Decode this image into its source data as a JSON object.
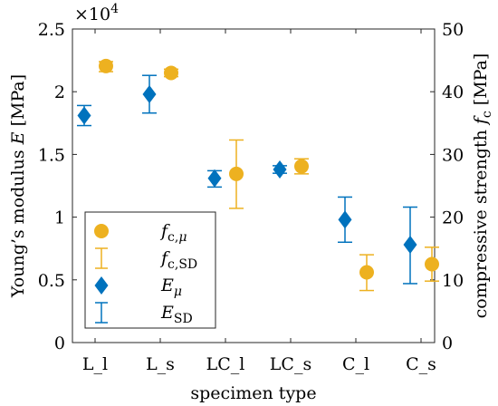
{
  "chart_data": {
    "type": "scatter",
    "categories": [
      "L_l",
      "L_s",
      "LC_l",
      "LC_s",
      "C_l",
      "C_s"
    ],
    "xlabel": "specimen type",
    "ylabel_left": "Young's modulus E [MPa]",
    "ylabel_right": "compressive strength f_c [MPa]",
    "left_exponent": "×10^4",
    "ylim_left": [
      0,
      25000
    ],
    "ylim_right": [
      0,
      50
    ],
    "left_ticks": [
      0,
      0.5,
      1,
      1.5,
      2,
      2.5
    ],
    "right_ticks": [
      0,
      10,
      20,
      30,
      40,
      50
    ],
    "grid": false,
    "legend_position": "bottom-left",
    "colors": {
      "E": "#0072BD",
      "fc": "#EDB120"
    },
    "series": [
      {
        "name": "f_c,μ",
        "axis": "right",
        "marker": "circle",
        "values": [
          44.1,
          43.0,
          26.9,
          28.1,
          11.2,
          12.5
        ],
        "error_lo": [
          43.2,
          42.4,
          21.4,
          26.9,
          8.3,
          9.8
        ],
        "error_hi": [
          44.8,
          43.6,
          32.3,
          29.3,
          14.0,
          15.2
        ]
      },
      {
        "name": "E_μ",
        "axis": "left",
        "marker": "diamond",
        "values": [
          18100,
          19800,
          13100,
          13800,
          9800,
          7800
        ],
        "error_lo": [
          17300,
          18300,
          12400,
          13500,
          8000,
          4700
        ],
        "error_hi": [
          18900,
          21300,
          13700,
          14100,
          11600,
          10800
        ]
      }
    ],
    "legend": [
      {
        "symbol": "circle",
        "color": "fc",
        "label": "f_c,μ"
      },
      {
        "symbol": "errorbar",
        "color": "fc",
        "label": "f_c,SD"
      },
      {
        "symbol": "diamond",
        "color": "E",
        "label": "E_μ"
      },
      {
        "symbol": "errorbar",
        "color": "E",
        "label": "E_SD"
      }
    ]
  }
}
